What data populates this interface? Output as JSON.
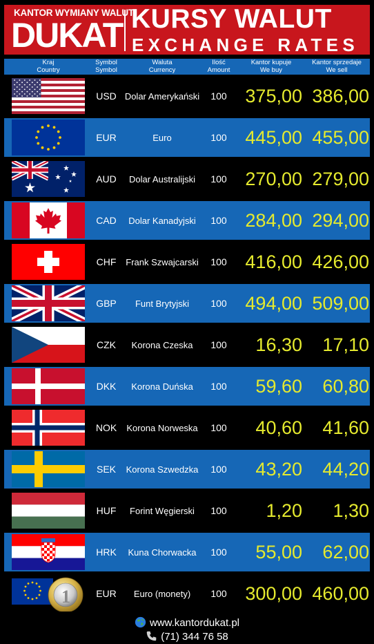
{
  "header": {
    "top_line": "KANTOR WYMIANY WALUT",
    "brand": "DUKAT",
    "title": "KURSY WALUT",
    "subtitle": "EXCHANGE RATES"
  },
  "columns": {
    "country_pl": "Kraj",
    "country_en": "Country",
    "symbol_pl": "Symbol",
    "symbol_en": "Symbol",
    "currency_pl": "Waluta",
    "currency_en": "Currency",
    "amount_pl": "Ilość",
    "amount_en": "Amount",
    "buy_pl": "Kantor kupuje",
    "buy_en": "We buy",
    "sell_pl": "Kantor sprzedaje",
    "sell_en": "We sell"
  },
  "rates": [
    {
      "flag": "us-flag-icon",
      "symbol": "USD",
      "name": "Dolar Amerykański",
      "amount": "100",
      "buy": "375,00",
      "sell": "386,00"
    },
    {
      "flag": "eu-flag-icon",
      "symbol": "EUR",
      "name": "Euro",
      "amount": "100",
      "buy": "445,00",
      "sell": "455,00"
    },
    {
      "flag": "au-flag-icon",
      "symbol": "AUD",
      "name": "Dolar Australijski",
      "amount": "100",
      "buy": "270,00",
      "sell": "279,00"
    },
    {
      "flag": "ca-flag-icon",
      "symbol": "CAD",
      "name": "Dolar Kanadyjski",
      "amount": "100",
      "buy": "284,00",
      "sell": "294,00"
    },
    {
      "flag": "ch-flag-icon",
      "symbol": "CHF",
      "name": "Frank Szwajcarski",
      "amount": "100",
      "buy": "416,00",
      "sell": "426,00"
    },
    {
      "flag": "gb-flag-icon",
      "symbol": "GBP",
      "name": "Funt Brytyjski",
      "amount": "100",
      "buy": "494,00",
      "sell": "509,00"
    },
    {
      "flag": "cz-flag-icon",
      "symbol": "CZK",
      "name": "Korona Czeska",
      "amount": "100",
      "buy": "16,30",
      "sell": "17,10"
    },
    {
      "flag": "dk-flag-icon",
      "symbol": "DKK",
      "name": "Korona Duńska",
      "amount": "100",
      "buy": "59,60",
      "sell": "60,80"
    },
    {
      "flag": "no-flag-icon",
      "symbol": "NOK",
      "name": "Korona Norweska",
      "amount": "100",
      "buy": "40,60",
      "sell": "41,60"
    },
    {
      "flag": "se-flag-icon",
      "symbol": "SEK",
      "name": "Korona Szwedzka",
      "amount": "100",
      "buy": "43,20",
      "sell": "44,20"
    },
    {
      "flag": "hu-flag-icon",
      "symbol": "HUF",
      "name": "Forint Węgierski",
      "amount": "100",
      "buy": "1,20",
      "sell": "1,30"
    },
    {
      "flag": "hr-flag-icon",
      "symbol": "HRK",
      "name": "Kuna Chorwacka",
      "amount": "100",
      "buy": "55,00",
      "sell": "62,00"
    },
    {
      "flag": "euro-coin-icon",
      "symbol": "EUR",
      "name": "Euro (monety)",
      "amount": "100",
      "buy": "300,00",
      "sell": "460,00"
    }
  ],
  "footer": {
    "website": "www.kantordukat.pl",
    "phone": "(71) 344 76 58"
  },
  "colors": {
    "banner": "#c8161d",
    "row_blue": "#1667b6",
    "rate_text": "#e5ea2e"
  }
}
